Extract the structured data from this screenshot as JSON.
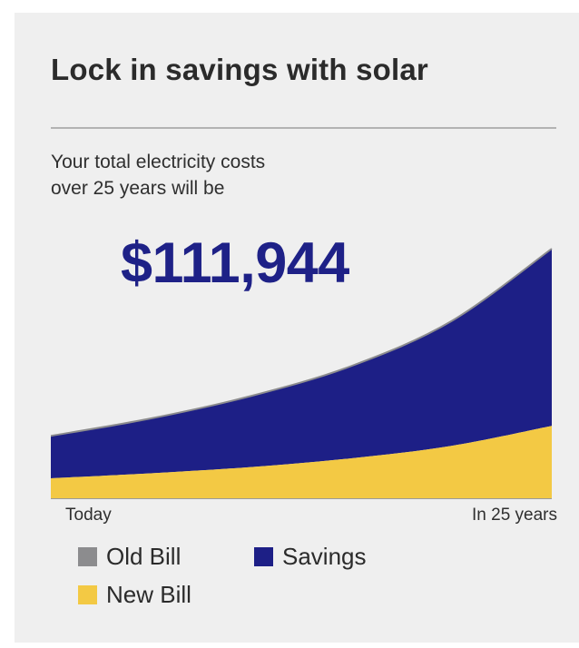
{
  "card": {
    "title": "Lock in savings with solar",
    "subtitle_line1": "Your total electricity costs",
    "subtitle_line2": "over 25 years will be",
    "total_amount": "$111,944"
  },
  "colors": {
    "savings": "#1d1f86",
    "new_bill": "#f3c944",
    "old_bill": "#8c8c8e"
  },
  "legend": [
    {
      "label": "Old Bill",
      "color": "#8c8c8e"
    },
    {
      "label": "Savings",
      "color": "#1d1f86"
    },
    {
      "label": "New Bill",
      "color": "#f3c944"
    }
  ],
  "chart_data": {
    "type": "area",
    "x_tick_labels": [
      "Today",
      "In 25 years"
    ],
    "x": [
      0,
      5,
      10,
      15,
      20,
      25
    ],
    "series": [
      {
        "name": "New Bill",
        "values": [
          0.08,
          0.1,
          0.125,
          0.16,
          0.21,
          0.29
        ]
      },
      {
        "name": "Old Bill",
        "values": [
          0.25,
          0.32,
          0.41,
          0.53,
          0.71,
          1.0
        ]
      }
    ],
    "ylim": [
      0,
      1
    ],
    "legend_position": "bottom",
    "grid": false
  }
}
